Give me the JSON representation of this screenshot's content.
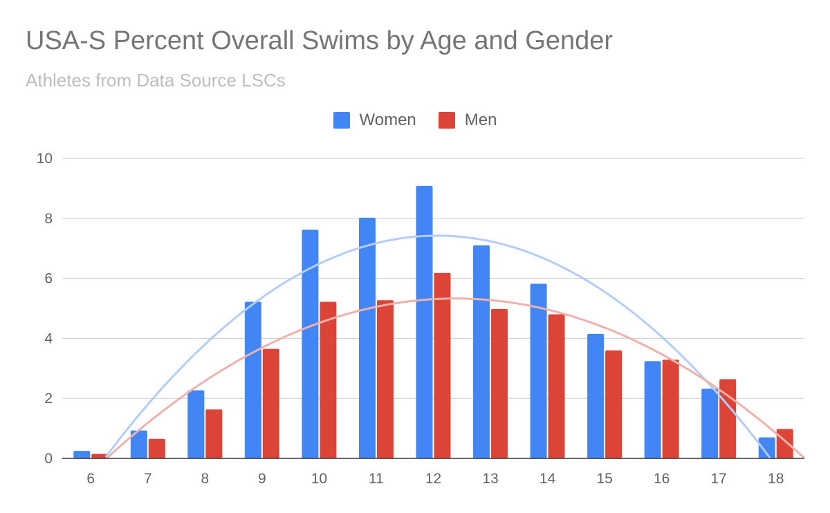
{
  "chart_data": {
    "type": "bar",
    "title": "USA-S Percent Overall Swims by Age and Gender",
    "subtitle": "Athletes from Data Source LSCs",
    "categories": [
      "6",
      "7",
      "8",
      "9",
      "10",
      "11",
      "12",
      "13",
      "14",
      "15",
      "16",
      "17",
      "18"
    ],
    "series": [
      {
        "name": "Women",
        "color": "#4285f4",
        "trend_color": "#b3cdf8",
        "values": [
          0.25,
          0.93,
          2.27,
          5.22,
          7.62,
          8.02,
          9.08,
          7.1,
          5.82,
          4.15,
          3.24,
          2.32,
          0.7
        ]
      },
      {
        "name": "Men",
        "color": "#db4437",
        "trend_color": "#efb1ab",
        "values": [
          0.15,
          0.65,
          1.63,
          3.65,
          5.22,
          5.27,
          6.18,
          4.98,
          4.8,
          3.6,
          3.29,
          2.64,
          0.98
        ]
      }
    ],
    "ylim": [
      0,
      10
    ],
    "yticks": [
      0,
      2,
      4,
      6,
      8,
      10
    ],
    "grid": true,
    "legend_position": "top",
    "trendline": "polynomial"
  }
}
